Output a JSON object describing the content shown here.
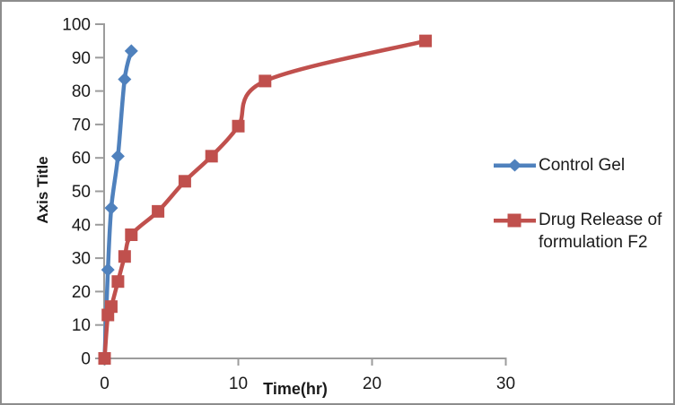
{
  "colors": {
    "series_blue": "#4F81BD",
    "series_red": "#C0504D",
    "axis_line": "#9C9C9C",
    "frame_border": "#8D8D8D",
    "text": "#1a1a1a"
  },
  "chart_data": {
    "type": "line",
    "title": "",
    "xlabel": "Time(hr)",
    "ylabel": "Axis Title",
    "xlim": [
      0,
      30
    ],
    "ylim": [
      0,
      100
    ],
    "x_ticks": [
      0,
      10,
      20,
      30
    ],
    "y_ticks": [
      0,
      10,
      20,
      30,
      40,
      50,
      60,
      70,
      80,
      90,
      100
    ],
    "grid": false,
    "smooth_lines": true,
    "legend_position": "right",
    "series": [
      {
        "name": "Control Gel",
        "color": "#4F81BD",
        "marker": "diamond",
        "x": [
          0,
          0.25,
          0.5,
          1,
          1.5,
          2
        ],
        "y": [
          0,
          26.5,
          45,
          60.5,
          83.5,
          92
        ]
      },
      {
        "name": "Drug Release of formulation F2",
        "color": "#C0504D",
        "marker": "square",
        "x": [
          0,
          0.25,
          0.5,
          1,
          1.5,
          2,
          4,
          6,
          8,
          10,
          12,
          24
        ],
        "y": [
          0,
          13,
          15.5,
          23,
          30.5,
          37,
          44,
          53,
          60.5,
          69.5,
          83,
          95
        ]
      }
    ]
  },
  "legend": {
    "entries": [
      {
        "lines": [
          "Control Gel",
          ""
        ],
        "color": "#4F81BD",
        "marker": "diamond"
      },
      {
        "lines": [
          "Drug Release of",
          "formulation F2"
        ],
        "color": "#C0504D",
        "marker": "square"
      }
    ]
  }
}
